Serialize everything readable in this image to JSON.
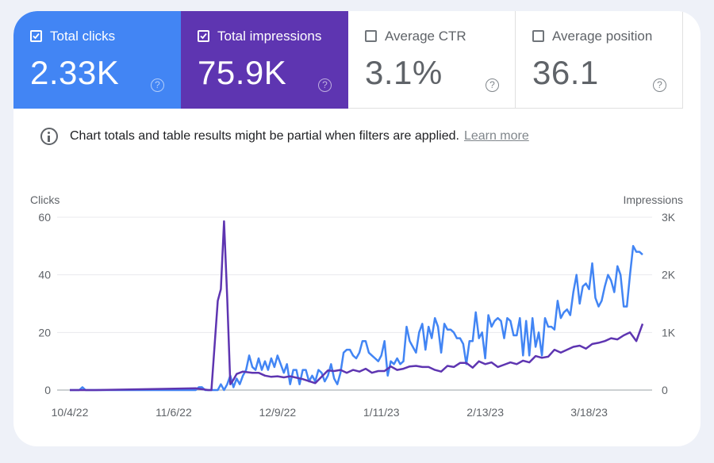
{
  "metrics": [
    {
      "label": "Total clicks",
      "value": "2.33K",
      "checked": true,
      "color": "#4285f4"
    },
    {
      "label": "Total impressions",
      "value": "75.9K",
      "checked": true,
      "color": "#5e35b1"
    },
    {
      "label": "Average CTR",
      "value": "3.1%",
      "checked": false,
      "color": "#ffffff"
    },
    {
      "label": "Average position",
      "value": "36.1",
      "checked": false,
      "color": "#ffffff"
    }
  ],
  "help_glyph": "?",
  "notice": {
    "icon": "info-icon",
    "text": "Chart totals and table results might be partial when filters are applied.",
    "link": "Learn more"
  },
  "chart_data": {
    "type": "line",
    "title": "",
    "left_axis": {
      "label": "Clicks",
      "ticks": [
        "0",
        "20",
        "40",
        "60"
      ],
      "range": [
        0,
        60
      ]
    },
    "right_axis": {
      "label": "Impressions",
      "ticks": [
        "0",
        "1K",
        "2K",
        "3K"
      ],
      "range": [
        0,
        3000
      ]
    },
    "x_ticks": [
      "10/4/22",
      "11/6/22",
      "12/9/22",
      "1/11/23",
      "2/13/23",
      "3/18/23"
    ],
    "x_range_days": [
      0,
      182
    ],
    "grid": true,
    "series": [
      {
        "name": "Clicks",
        "axis": "left",
        "color": "#4285f4",
        "x": [
          0,
          3,
          4,
          5,
          6,
          8,
          40,
          41,
          42,
          43,
          44,
          45,
          46,
          47,
          48,
          49,
          50,
          51,
          52,
          53,
          54,
          55,
          56,
          57,
          58,
          59,
          60,
          61,
          62,
          63,
          64,
          65,
          66,
          67,
          68,
          69,
          70,
          71,
          72,
          73,
          74,
          75,
          76,
          77,
          78,
          79,
          80,
          81,
          82,
          83,
          84,
          85,
          86,
          87,
          88,
          89,
          90,
          91,
          92,
          93,
          94,
          95,
          96,
          97,
          98,
          99,
          100,
          101,
          102,
          103,
          104,
          105,
          106,
          107,
          108,
          109,
          110,
          111,
          112,
          113,
          114,
          115,
          116,
          117,
          118,
          119,
          120,
          121,
          122,
          123,
          124,
          125,
          126,
          127,
          128,
          129,
          130,
          131,
          132,
          133,
          134,
          135,
          136,
          137,
          138,
          139,
          140,
          141,
          142,
          143,
          144,
          145,
          146,
          147,
          148,
          149,
          150,
          151,
          152,
          153,
          154,
          155,
          156,
          157,
          158,
          159,
          160,
          161,
          162,
          163,
          164,
          165,
          166,
          167,
          168,
          169,
          170,
          171,
          172,
          173,
          174,
          175,
          176,
          177,
          178,
          179,
          180,
          181,
          182
        ],
        "values": [
          0,
          0,
          1,
          0,
          0,
          0,
          0,
          1,
          1,
          0,
          0,
          0,
          0,
          0,
          2,
          0,
          2,
          5,
          1,
          4,
          2,
          5,
          7,
          12,
          8,
          7,
          11,
          7,
          10,
          7,
          11,
          8,
          12,
          9,
          6,
          9,
          2,
          7,
          7,
          2,
          7,
          7,
          3,
          5,
          3,
          7,
          6,
          3,
          5,
          9,
          4,
          2,
          6,
          13,
          14,
          14,
          12,
          11,
          13,
          17,
          17,
          13,
          12,
          11,
          10,
          12,
          17,
          5,
          10,
          9,
          11,
          9,
          10,
          22,
          17,
          15,
          13,
          20,
          23,
          14,
          22,
          18,
          25,
          22,
          13,
          23,
          21,
          21,
          20,
          18,
          18,
          16,
          9,
          17,
          17,
          27,
          18,
          20,
          11,
          26,
          22,
          24,
          25,
          24,
          18,
          25,
          24,
          19,
          19,
          25,
          12,
          24,
          12,
          25,
          15,
          20,
          12,
          25,
          22,
          22,
          21,
          31,
          25,
          27,
          28,
          26,
          34,
          40,
          30,
          36,
          37,
          35,
          44,
          32,
          29,
          31,
          36,
          40,
          38,
          34,
          43,
          40,
          29,
          29,
          40,
          50,
          48,
          48,
          47
        ],
        "note": "approximate, read from plot"
      },
      {
        "name": "Impressions",
        "axis": "right",
        "color": "#5e35b1",
        "x": [
          0,
          8,
          30,
          40,
          44,
          45,
          47,
          48,
          49,
          50,
          51,
          52,
          53,
          55,
          58,
          60,
          62,
          64,
          66,
          68,
          70,
          74,
          78,
          82,
          84,
          86,
          88,
          90,
          92,
          94,
          96,
          98,
          100,
          102,
          104,
          106,
          108,
          110,
          112,
          114,
          116,
          118,
          120,
          122,
          124,
          126,
          128,
          130,
          132,
          134,
          136,
          138,
          140,
          142,
          144,
          146,
          148,
          150,
          152,
          154,
          156,
          158,
          160,
          162,
          164,
          166,
          168,
          170,
          172,
          174,
          176,
          178,
          180,
          182
        ],
        "values": [
          0,
          0,
          20,
          30,
          0,
          0,
          1550,
          1750,
          2930,
          1600,
          100,
          180,
          280,
          320,
          300,
          300,
          250,
          230,
          240,
          220,
          240,
          190,
          120,
          340,
          330,
          350,
          300,
          350,
          320,
          370,
          300,
          330,
          330,
          410,
          350,
          370,
          410,
          420,
          400,
          400,
          350,
          320,
          420,
          400,
          470,
          470,
          390,
          500,
          450,
          480,
          400,
          440,
          480,
          450,
          510,
          480,
          590,
          560,
          580,
          700,
          650,
          700,
          750,
          770,
          720,
          800,
          820,
          850,
          900,
          880,
          950,
          1000,
          850,
          1150
        ],
        "note": "approximate, read from plot"
      }
    ]
  }
}
